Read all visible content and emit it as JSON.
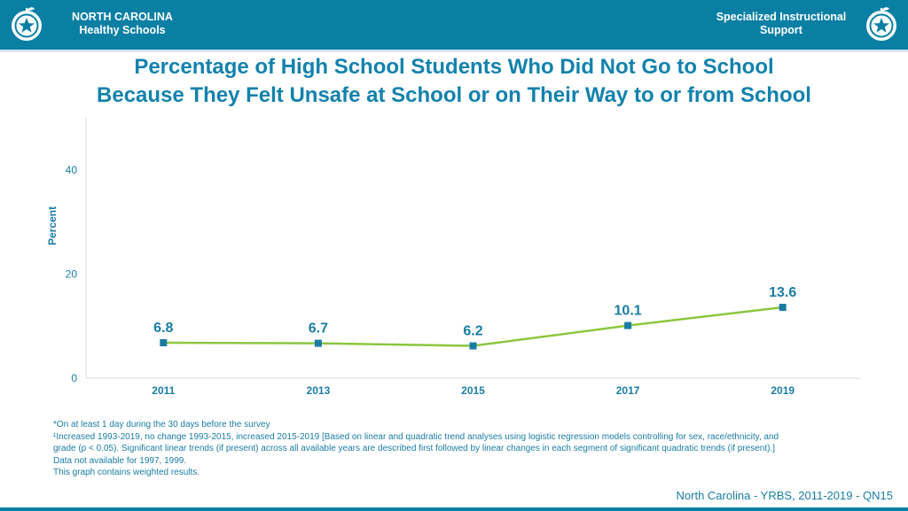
{
  "header": {
    "org_line1": "NORTH CAROLINA",
    "org_line2": "Healthy Schools",
    "dept_line1": "Specialized Instructional",
    "dept_line2": "Support"
  },
  "title": {
    "line1": "Percentage of High School Students Who Did Not Go to School",
    "line2": "Because They Felt Unsafe at School or on Their Way to or from School"
  },
  "colors": {
    "header_bg": "#0a7fa4",
    "text_accent": "#1282ac",
    "line": "#8cc63f",
    "marker": "#1a7ca3"
  },
  "chart_data": {
    "type": "line",
    "title": "",
    "xlabel": "",
    "ylabel": "Percent",
    "categories": [
      "2011",
      "2013",
      "2015",
      "2017",
      "2019"
    ],
    "series": [
      {
        "values": [
          6.8,
          6.7,
          6.2,
          10.1,
          13.6
        ]
      }
    ],
    "data_labels": [
      "6.8",
      "6.7",
      "6.2",
      "10.1",
      "13.6"
    ],
    "y_ticks": [
      0,
      20,
      40
    ],
    "ylim": [
      0,
      50
    ],
    "grid": false,
    "legend": "none"
  },
  "notes": [
    "*On at least 1 day during the 30 days before the survey",
    "¹Increased 1993-2019, no change 1993-2015, increased 2015-2019 [Based on linear and quadratic trend analyses using logistic regression models controlling for sex, race/ethnicity, and",
    "grade (p < 0.05). Significant linear trends (if present) across all available years are described first followed by linear changes in each segment of significant quadratic trends (if present).]",
    "Data not available for 1997, 1999.",
    "This graph contains weighted results."
  ],
  "source": "North Carolina - YRBS, 2011-2019 - QN15"
}
